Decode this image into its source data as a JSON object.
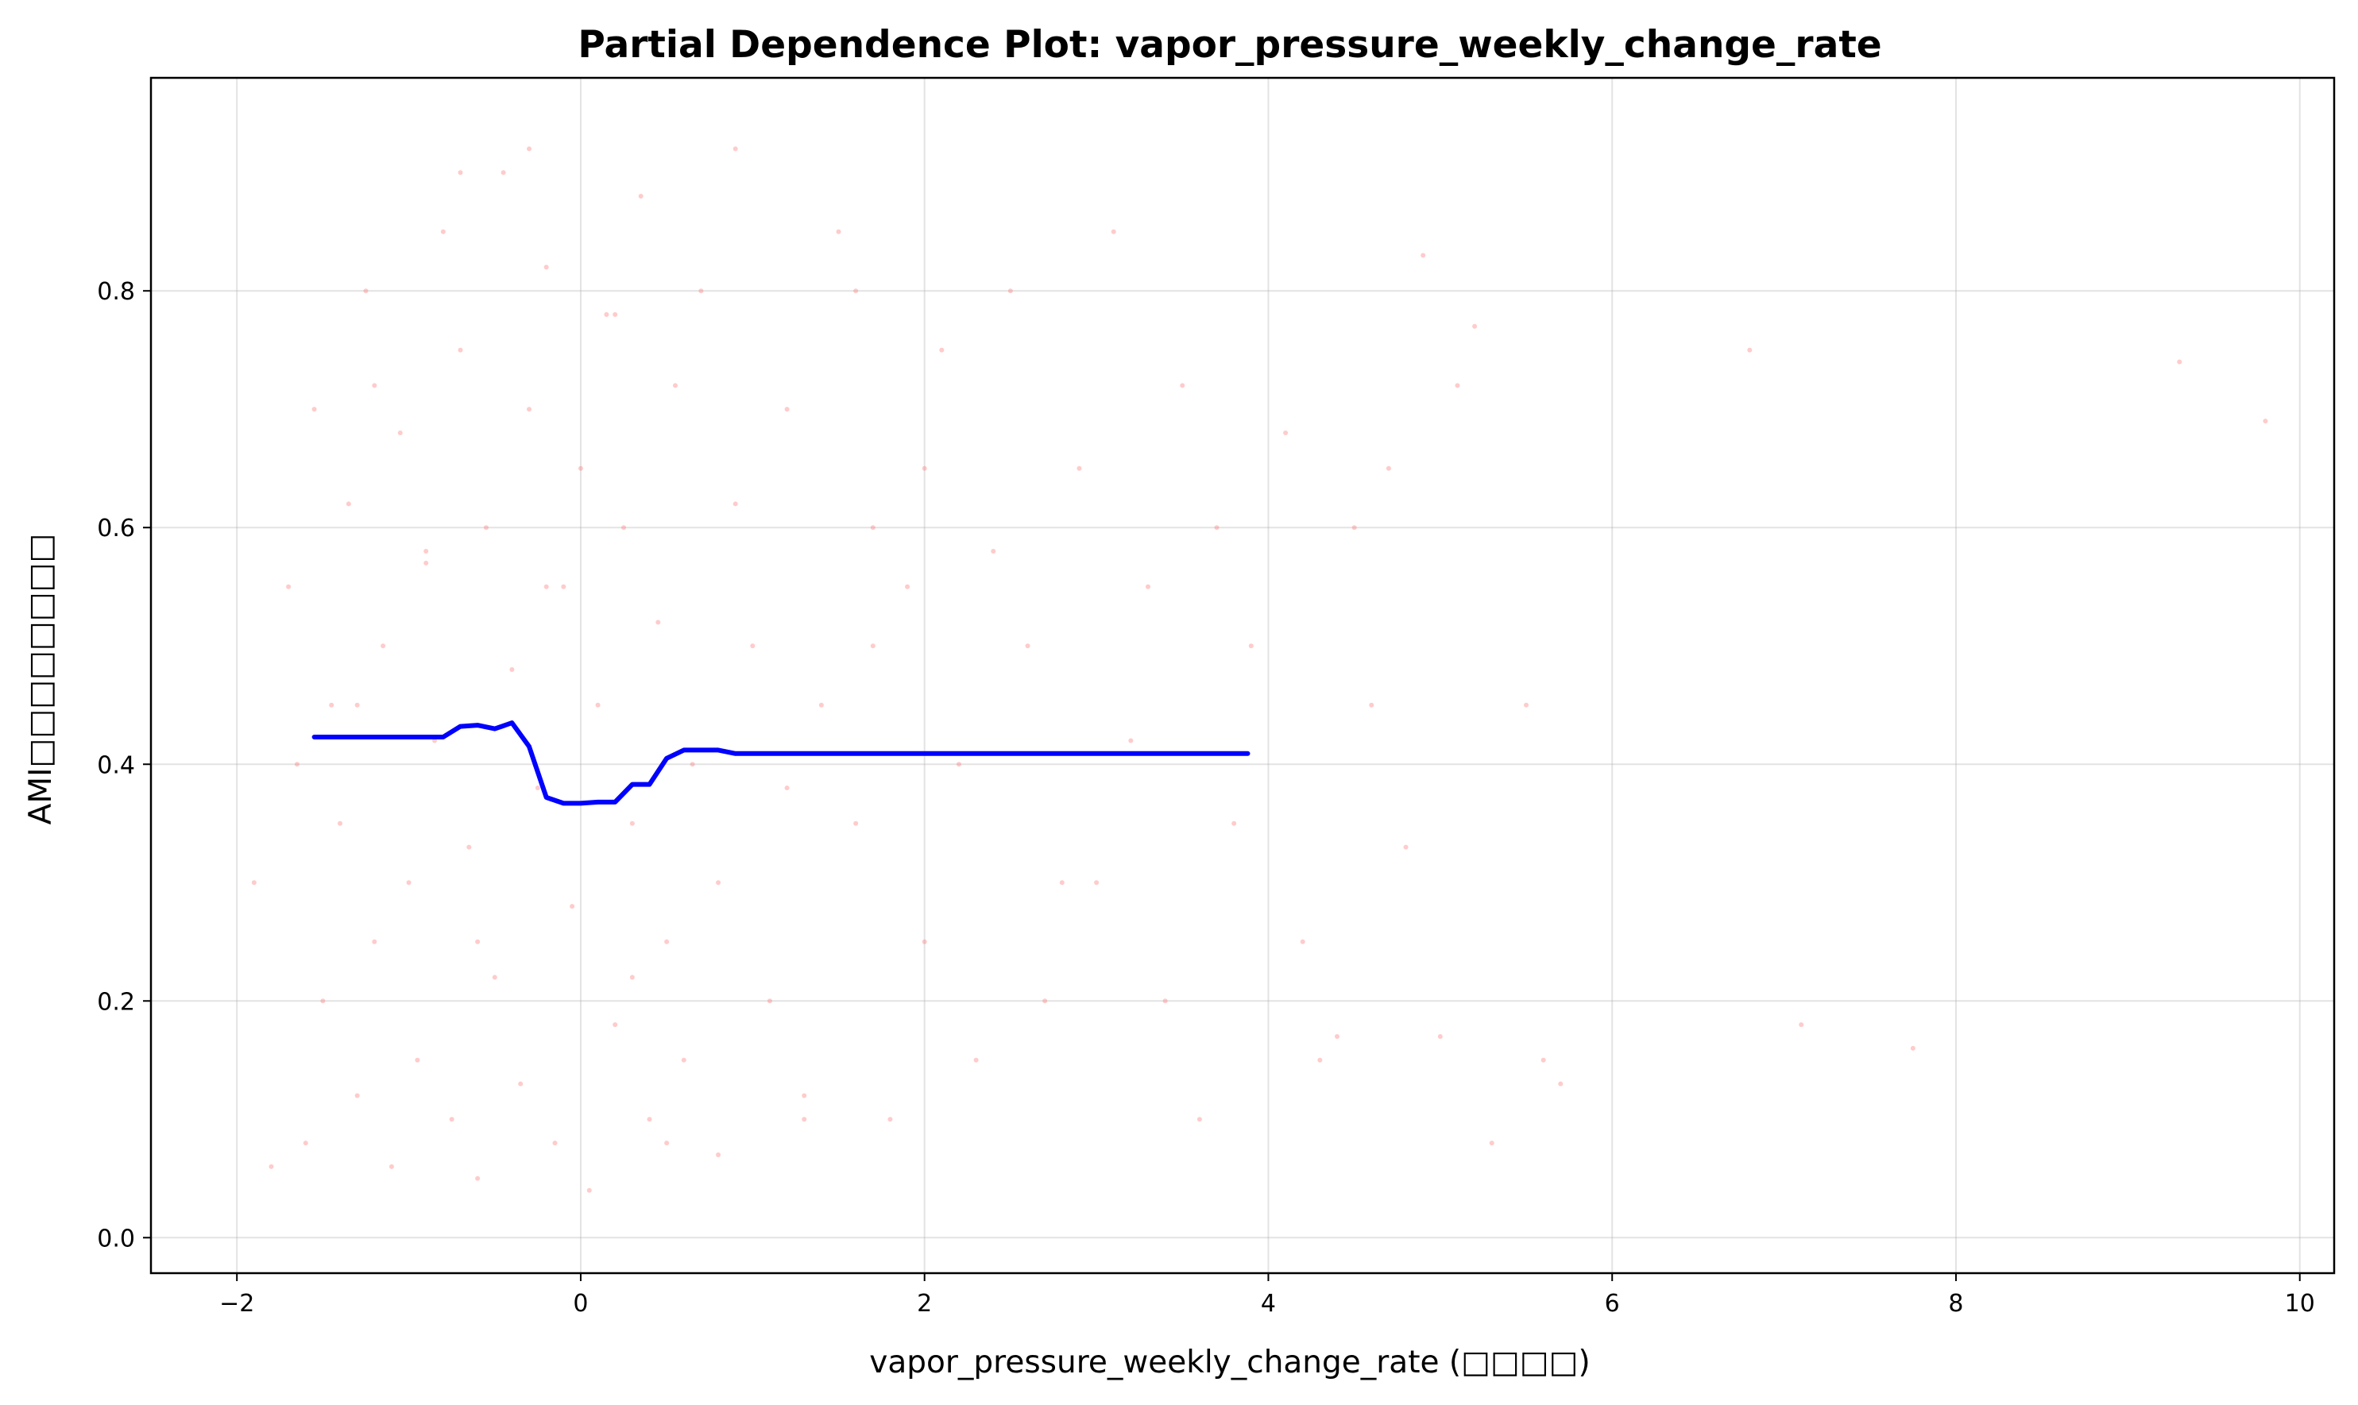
{
  "chart_data": {
    "type": "line",
    "title": "Partial Dependence Plot: vapor_pressure_weekly_change_rate",
    "xlabel": "vapor_pressure_weekly_change_rate (□□□□)",
    "ylabel": "AMI□□□□□□□□",
    "xlim": [
      -2.5,
      10.2
    ],
    "ylim": [
      -0.03,
      0.98
    ],
    "x_ticks": [
      -2,
      0,
      2,
      4,
      6,
      8,
      10
    ],
    "x_tick_labels": [
      "−2",
      "0",
      "2",
      "4",
      "6",
      "8",
      "10"
    ],
    "y_ticks": [
      0.0,
      0.2,
      0.4,
      0.6,
      0.8
    ],
    "y_tick_labels": [
      "0.0",
      "0.2",
      "0.4",
      "0.6",
      "0.8"
    ],
    "grid": true,
    "legend": "none",
    "series": [
      {
        "type": "line",
        "color": "#0000ff",
        "x": [
          -1.55,
          -1.3,
          -1.05,
          -0.8,
          -0.7,
          -0.6,
          -0.5,
          -0.4,
          -0.3,
          -0.2,
          -0.1,
          0.0,
          0.1,
          0.2,
          0.3,
          0.4,
          0.5,
          0.6,
          0.7,
          0.8,
          0.9,
          1.0,
          1.1,
          1.5,
          2.0,
          2.5,
          3.0,
          3.5,
          3.88
        ],
        "y": [
          0.423,
          0.423,
          0.423,
          0.423,
          0.432,
          0.433,
          0.43,
          0.435,
          0.415,
          0.372,
          0.367,
          0.367,
          0.368,
          0.368,
          0.383,
          0.383,
          0.405,
          0.412,
          0.412,
          0.412,
          0.409,
          0.409,
          0.409,
          0.409,
          0.409,
          0.409,
          0.409,
          0.409,
          0.409
        ]
      },
      {
        "type": "scatter",
        "color": "#ff6b6b",
        "x": [
          -1.9,
          -1.7,
          -1.6,
          -1.55,
          -1.5,
          -1.45,
          -1.4,
          -1.35,
          -1.3,
          -1.25,
          -1.2,
          -1.15,
          -1.1,
          -1.05,
          -1.0,
          -0.95,
          -0.9,
          -0.85,
          -0.8,
          -0.75,
          -0.7,
          -0.65,
          -0.6,
          -0.55,
          -0.5,
          -0.45,
          -0.4,
          -0.35,
          -0.3,
          -0.25,
          -0.2,
          -0.15,
          -0.1,
          -0.05,
          0.0,
          0.05,
          0.1,
          0.15,
          0.2,
          0.25,
          0.3,
          0.35,
          0.4,
          0.45,
          0.5,
          0.55,
          0.6,
          0.65,
          0.7,
          0.8,
          0.9,
          1.0,
          1.1,
          1.2,
          1.3,
          1.4,
          1.5,
          1.6,
          1.7,
          1.8,
          1.9,
          2.0,
          2.1,
          2.2,
          2.3,
          2.5,
          2.6,
          2.7,
          2.9,
          3.0,
          3.1,
          3.3,
          3.4,
          3.5,
          3.6,
          3.7,
          3.8,
          3.9,
          4.1,
          4.2,
          4.3,
          4.5,
          4.6,
          4.7,
          4.9,
          5.0,
          5.1,
          5.2,
          5.5,
          5.6,
          5.7,
          6.8,
          7.1,
          7.75,
          9.3,
          9.8,
          -1.8,
          -1.65,
          -1.2,
          -0.9,
          -0.6,
          -0.3,
          0.2,
          0.5,
          0.9,
          1.3,
          1.7,
          2.4,
          2.8,
          3.2,
          4.4,
          4.8,
          5.3,
          -1.3,
          -0.7,
          -0.2,
          0.3,
          0.8,
          1.2,
          1.6,
          2.0
        ],
        "y": [
          0.3,
          0.55,
          0.08,
          0.7,
          0.2,
          0.45,
          0.35,
          0.62,
          0.12,
          0.8,
          0.25,
          0.5,
          0.06,
          0.68,
          0.3,
          0.15,
          0.57,
          0.42,
          0.85,
          0.1,
          0.75,
          0.33,
          0.05,
          0.6,
          0.22,
          0.9,
          0.48,
          0.13,
          0.7,
          0.38,
          0.82,
          0.08,
          0.55,
          0.28,
          0.65,
          0.04,
          0.45,
          0.78,
          0.18,
          0.6,
          0.35,
          0.88,
          0.1,
          0.52,
          0.25,
          0.72,
          0.15,
          0.4,
          0.8,
          0.3,
          0.62,
          0.5,
          0.2,
          0.7,
          0.12,
          0.45,
          0.85,
          0.35,
          0.6,
          0.1,
          0.55,
          0.25,
          0.75,
          0.4,
          0.15,
          0.8,
          0.5,
          0.2,
          0.65,
          0.3,
          0.85,
          0.55,
          0.2,
          0.72,
          0.1,
          0.6,
          0.35,
          0.5,
          0.68,
          0.25,
          0.15,
          0.6,
          0.45,
          0.65,
          0.83,
          0.17,
          0.72,
          0.77,
          0.45,
          0.15,
          0.13,
          0.75,
          0.18,
          0.16,
          0.74,
          0.69,
          0.06,
          0.4,
          0.72,
          0.58,
          0.25,
          0.92,
          0.78,
          0.08,
          0.92,
          0.1,
          0.5,
          0.58,
          0.3,
          0.42,
          0.17,
          0.33,
          0.08,
          0.45,
          0.9,
          0.55,
          0.22,
          0.07,
          0.38,
          0.8,
          0.65
        ]
      }
    ]
  }
}
